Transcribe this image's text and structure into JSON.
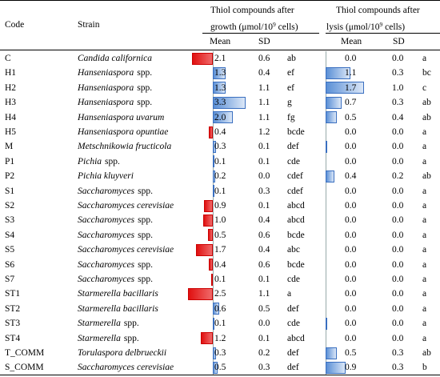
{
  "table": {
    "headers": {
      "code": "Code",
      "strain": "Strain",
      "growth_line1": "Thiol compounds after",
      "growth_line2_pre": "growth (μmol/10",
      "growth_sup": "9",
      "growth_line2_post": " cells)",
      "lysis_line1": "Thiol compounds after",
      "lysis_line2_pre": "lysis (μmol/10",
      "lysis_sup": "9",
      "lysis_line2_post": " cells)",
      "mean": "Mean",
      "sd": "SD"
    },
    "rows": [
      {
        "code": "C",
        "genus": "Candida californica",
        "spp": "",
        "g_mean": "2.1",
        "g_sd": "0.6",
        "g_sig": "ab",
        "l_mean": "0.0",
        "l_sd": "0.0",
        "l_sig": "a"
      },
      {
        "code": "H1",
        "genus": "Hanseniaspora",
        "spp": "spp.",
        "g_mean": "1.3",
        "g_sd": "0.4",
        "g_sig": "ef",
        "l_mean": "1.1",
        "l_sd": "0.3",
        "l_sig": "bc"
      },
      {
        "code": "H2",
        "genus": "Hanseniaspora",
        "spp": "spp.",
        "g_mean": "1.3",
        "g_sd": "1.1",
        "g_sig": "ef",
        "l_mean": "1.7",
        "l_sd": "1.0",
        "l_sig": "c"
      },
      {
        "code": "H3",
        "genus": "Hanseniaspora",
        "spp": "spp.",
        "g_mean": "3.3",
        "g_sd": "1.1",
        "g_sig": "g",
        "l_mean": "0.7",
        "l_sd": "0.3",
        "l_sig": "ab"
      },
      {
        "code": "H4",
        "genus": "Hanseniaspora uvarum",
        "spp": "",
        "g_mean": "2.0",
        "g_sd": "1.1",
        "g_sig": "fg",
        "l_mean": "0.5",
        "l_sd": "0.4",
        "l_sig": "ab"
      },
      {
        "code": "H5",
        "genus": "Hanseniaspora opuntiae",
        "spp": "",
        "g_mean": "0.4",
        "g_sd": "1.2",
        "g_sig": "bcde",
        "l_mean": "0.0",
        "l_sd": "0.0",
        "l_sig": "a"
      },
      {
        "code": "M",
        "genus": "Metschnikowia fructicola",
        "spp": "",
        "g_mean": "0.3",
        "g_sd": "0.1",
        "g_sig": "def",
        "l_mean": "0.0",
        "l_sd": "0.0",
        "l_sig": "a"
      },
      {
        "code": "P1",
        "genus": "Pichia",
        "spp": "spp.",
        "g_mean": "0.1",
        "g_sd": "0.1",
        "g_sig": "cde",
        "l_mean": "0.0",
        "l_sd": "0.0",
        "l_sig": "a"
      },
      {
        "code": "P2",
        "genus": "Pichia kluyveri",
        "spp": "",
        "g_mean": "0.2",
        "g_sd": "0.0",
        "g_sig": "cdef",
        "l_mean": "0.4",
        "l_sd": "0.2",
        "l_sig": "ab"
      },
      {
        "code": "S1",
        "genus": "Saccharomyces",
        "spp": "spp.",
        "g_mean": "0.1",
        "g_sd": "0.3",
        "g_sig": "cdef",
        "l_mean": "0.0",
        "l_sd": "0.0",
        "l_sig": "a"
      },
      {
        "code": "S2",
        "genus": "Saccharomyces cerevisiae",
        "spp": "",
        "g_mean": "0.9",
        "g_sd": "0.1",
        "g_sig": "abcd",
        "l_mean": "0.0",
        "l_sd": "0.0",
        "l_sig": "a"
      },
      {
        "code": "S3",
        "genus": "Saccharomyces",
        "spp": "spp.",
        "g_mean": "1.0",
        "g_sd": "0.4",
        "g_sig": "abcd",
        "l_mean": "0.0",
        "l_sd": "0.0",
        "l_sig": "a"
      },
      {
        "code": "S4",
        "genus": "Saccharomyces",
        "spp": "spp.",
        "g_mean": "0.5",
        "g_sd": "0.6",
        "g_sig": "bcde",
        "l_mean": "0.0",
        "l_sd": "0.0",
        "l_sig": "a"
      },
      {
        "code": "S5",
        "genus": "Saccharomyces cerevisiae",
        "spp": "",
        "g_mean": "1.7",
        "g_sd": "0.4",
        "g_sig": "abc",
        "l_mean": "0.0",
        "l_sd": "0.0",
        "l_sig": "a"
      },
      {
        "code": "S6",
        "genus": "Saccharomyces",
        "spp": "spp.",
        "g_mean": "0.4",
        "g_sd": "0.6",
        "g_sig": "bcde",
        "l_mean": "0.0",
        "l_sd": "0.0",
        "l_sig": "a"
      },
      {
        "code": "S7",
        "genus": "Saccharomyces",
        "spp": "spp.",
        "g_mean": "0.1",
        "g_sd": "0.1",
        "g_sig": "cde",
        "l_mean": "0.0",
        "l_sd": "0.0",
        "l_sig": "a"
      },
      {
        "code": "ST1",
        "genus": "Starmerella bacillaris",
        "spp": "",
        "g_mean": "2.5",
        "g_sd": "1.1",
        "g_sig": "a",
        "l_mean": "0.0",
        "l_sd": "0.0",
        "l_sig": "a"
      },
      {
        "code": "ST2",
        "genus": "Starmerella bacillaris",
        "spp": "",
        "g_mean": "0.6",
        "g_sd": "0.5",
        "g_sig": "def",
        "l_mean": "0.0",
        "l_sd": "0.0",
        "l_sig": "a"
      },
      {
        "code": "ST3",
        "genus": "Starmerella",
        "spp": "spp.",
        "g_mean": "0.1",
        "g_sd": "0.0",
        "g_sig": "cde",
        "l_mean": "0.0",
        "l_sd": "0.0",
        "l_sig": "a"
      },
      {
        "code": "ST4",
        "genus": "Starmerella",
        "spp": "spp.",
        "g_mean": "1.2",
        "g_sd": "0.1",
        "g_sig": "abcd",
        "l_mean": "0.0",
        "l_sd": "0.0",
        "l_sig": "a"
      },
      {
        "code": "T_COMM",
        "genus": "Torulaspora delbrueckii",
        "spp": "",
        "g_mean": "0.3",
        "g_sd": "0.2",
        "g_sig": "def",
        "l_mean": "0.5",
        "l_sd": "0.3",
        "l_sig": "ab"
      },
      {
        "code": "S_COMM",
        "genus": "Saccharomyces cerevisiae",
        "spp": "",
        "g_mean": "0.5",
        "g_sd": "0.3",
        "g_sig": "def",
        "l_mean": "0.9",
        "l_sd": "0.3",
        "l_sig": "b"
      }
    ],
    "growth_bars": [
      {
        "dir": -1,
        "mag": 2.1
      },
      {
        "dir": 1,
        "mag": 1.3
      },
      {
        "dir": 1,
        "mag": 1.3
      },
      {
        "dir": 1,
        "mag": 3.3
      },
      {
        "dir": 1,
        "mag": 2.0
      },
      {
        "dir": -1,
        "mag": 0.4
      },
      {
        "dir": 1,
        "mag": 0.3
      },
      {
        "dir": 1,
        "mag": 0.05
      },
      {
        "dir": 1,
        "mag": 0.2
      },
      {
        "dir": 1,
        "mag": 0.1
      },
      {
        "dir": -1,
        "mag": 0.9
      },
      {
        "dir": -1,
        "mag": 1.0
      },
      {
        "dir": -1,
        "mag": 0.5
      },
      {
        "dir": -1,
        "mag": 1.7
      },
      {
        "dir": -1,
        "mag": 0.4
      },
      {
        "dir": -1,
        "mag": 0.05
      },
      {
        "dir": -1,
        "mag": 2.5
      },
      {
        "dir": 1,
        "mag": 0.6
      },
      {
        "dir": 1,
        "mag": 0.1
      },
      {
        "dir": -1,
        "mag": 1.2
      },
      {
        "dir": 1,
        "mag": 0.3
      },
      {
        "dir": 1,
        "mag": 0.5
      }
    ],
    "lysis_bars": [
      0.0,
      1.1,
      1.7,
      0.7,
      0.5,
      0.0,
      0.02,
      0.0,
      0.4,
      0.0,
      0.0,
      0.0,
      0.0,
      0.0,
      0.0,
      0.0,
      0.0,
      0.0,
      0.02,
      0.0,
      0.5,
      0.9
    ]
  }
}
